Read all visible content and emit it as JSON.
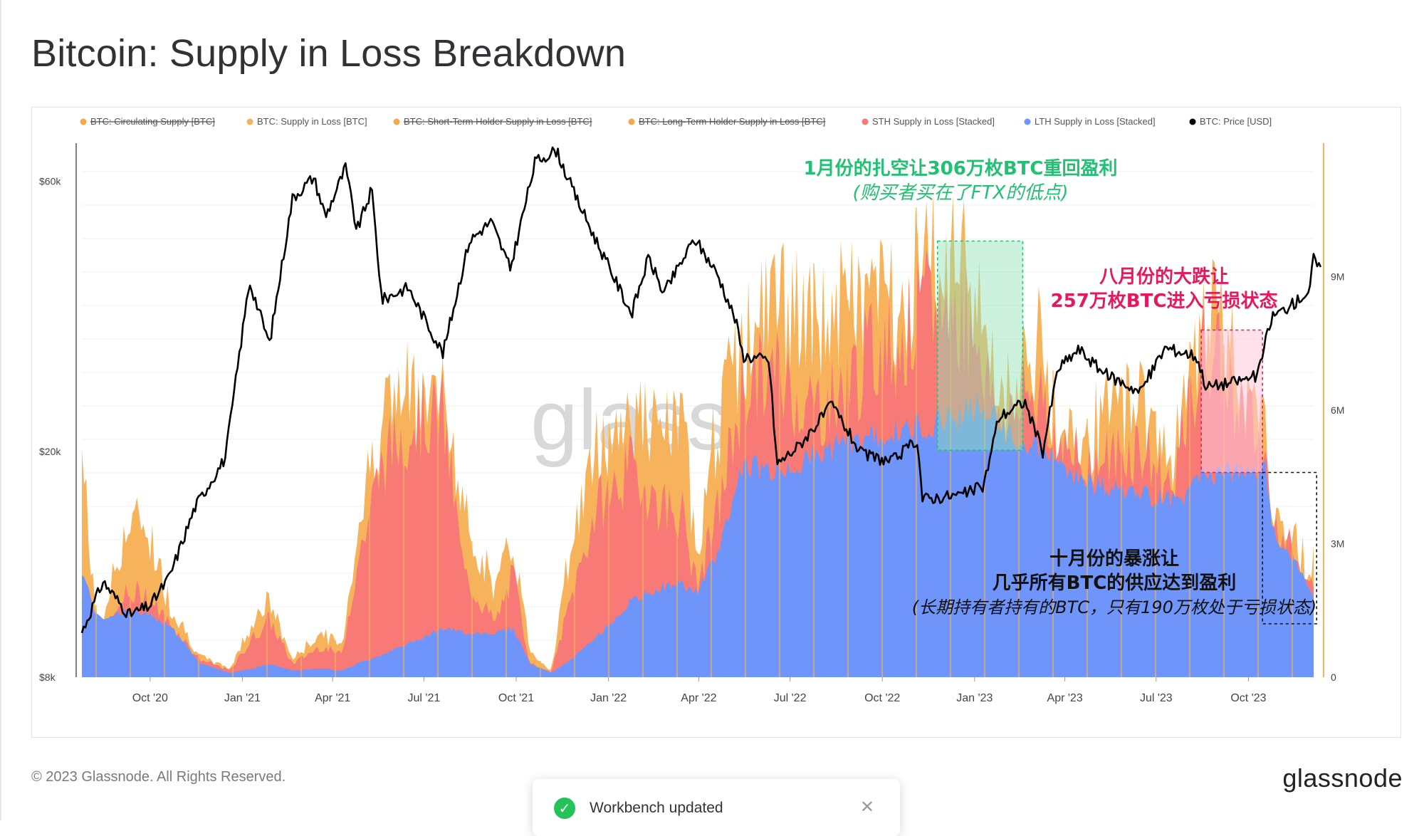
{
  "header": {
    "title": "Bitcoin: Supply in Loss Breakdown"
  },
  "footer": {
    "copyright": "© 2023 Glassnode. All Rights Reserved.",
    "brand": "glassnode"
  },
  "toast": {
    "message": "Workbench updated",
    "icon": "check-circle-icon",
    "close_icon": "close-icon"
  },
  "watermark": "glass",
  "colors": {
    "supply_in_loss": "#f7b35b",
    "sth": "#f77a76",
    "lth": "#6f95fa",
    "price": "#000000",
    "green_annot": "#21c072",
    "pink_annot": "#e5195d",
    "black_annot": "#111111",
    "right_axis": "#f7b35b"
  },
  "chart_data": {
    "type": "area",
    "title": "Bitcoin: Supply in Loss Breakdown",
    "legend_position": "top",
    "grid": true,
    "legend": [
      {
        "label": "BTC: Circulating Supply [BTC]",
        "color": "#f7a64a",
        "hidden": true
      },
      {
        "label": "BTC: Supply in Loss [BTC]",
        "color": "#f7b35b",
        "hidden": false
      },
      {
        "label": "BTC: Short-Term Holder Supply in Loss [BTC]",
        "color": "#f7a64a",
        "hidden": true
      },
      {
        "label": "BTC: Long-Term Holder Supply in Loss [BTC]",
        "color": "#f7a64a",
        "hidden": true
      },
      {
        "label": "STH Supply in Loss [Stacked]",
        "color": "#f77a76",
        "hidden": false
      },
      {
        "label": "LTH Supply in Loss [Stacked]",
        "color": "#6f95fa",
        "hidden": false
      },
      {
        "label": "BTC: Price [USD]",
        "color": "#000000",
        "hidden": false
      }
    ],
    "x_ticks": [
      "Oct '20",
      "Jan '21",
      "Apr '21",
      "Jul '21",
      "Oct '21",
      "Jan '22",
      "Apr '22",
      "Jul '22",
      "Oct '22",
      "Jan '23",
      "Apr '23",
      "Jul '23",
      "Oct '23"
    ],
    "y_left": {
      "scale": "log",
      "ticks": [
        "$8k",
        "$20k",
        "$60k"
      ],
      "tick_values": [
        8000,
        20000,
        60000
      ],
      "range": [
        8000,
        70000
      ]
    },
    "y_right": {
      "ticks": [
        "0",
        "3M",
        "6M",
        "9M"
      ],
      "tick_values": [
        0,
        3000000,
        6000000,
        9000000
      ],
      "range": [
        0,
        12000000
      ]
    },
    "x_range": [
      "2020-07-25",
      "2023-12-05"
    ],
    "supply_series": [
      {
        "date": "2020-07-25",
        "lth": 2400000,
        "sth": 1200000,
        "loss": 5000000
      },
      {
        "date": "2020-08-10",
        "lth": 1300000,
        "sth": 300000,
        "loss": 900000
      },
      {
        "date": "2020-09-05",
        "lth": 1500000,
        "sth": 1800000,
        "loss": 3200000
      },
      {
        "date": "2020-09-25",
        "lth": 1400000,
        "sth": 1900000,
        "loss": 3600000
      },
      {
        "date": "2020-10-20",
        "lth": 1200000,
        "sth": 1200000,
        "loss": 1700000
      },
      {
        "date": "2020-11-20",
        "lth": 300000,
        "sth": 400000,
        "loss": 450000
      },
      {
        "date": "2020-12-20",
        "lth": 100000,
        "sth": 150000,
        "loss": 200000
      },
      {
        "date": "2021-01-12",
        "lth": 200000,
        "sth": 900000,
        "loss": 1300000
      },
      {
        "date": "2021-01-28",
        "lth": 300000,
        "sth": 1300000,
        "loss": 1700000
      },
      {
        "date": "2021-02-20",
        "lth": 150000,
        "sth": 300000,
        "loss": 400000
      },
      {
        "date": "2021-03-20",
        "lth": 200000,
        "sth": 700000,
        "loss": 1000000
      },
      {
        "date": "2021-04-10",
        "lth": 150000,
        "sth": 500000,
        "loss": 700000
      },
      {
        "date": "2021-04-25",
        "lth": 300000,
        "sth": 2500000,
        "loss": 3200000
      },
      {
        "date": "2021-05-20",
        "lth": 500000,
        "sth": 4800000,
        "loss": 6000000
      },
      {
        "date": "2021-06-20",
        "lth": 800000,
        "sth": 5800000,
        "loss": 6400000
      },
      {
        "date": "2021-07-20",
        "lth": 1100000,
        "sth": 5900000,
        "loss": 6200000
      },
      {
        "date": "2021-08-10",
        "lth": 1000000,
        "sth": 2300000,
        "loss": 3600000
      },
      {
        "date": "2021-09-10",
        "lth": 1000000,
        "sth": 1200000,
        "loss": 2000000
      },
      {
        "date": "2021-09-28",
        "lth": 1100000,
        "sth": 2300000,
        "loss": 3000000
      },
      {
        "date": "2021-10-15",
        "lth": 300000,
        "sth": 300000,
        "loss": 600000
      },
      {
        "date": "2021-11-05",
        "lth": 100000,
        "sth": 100000,
        "loss": 150000
      },
      {
        "date": "2021-11-25",
        "lth": 400000,
        "sth": 1800000,
        "loss": 3100000
      },
      {
        "date": "2021-12-20",
        "lth": 900000,
        "sth": 3800000,
        "loss": 5100000
      },
      {
        "date": "2022-01-24",
        "lth": 1700000,
        "sth": 4700000,
        "loss": 6000000
      },
      {
        "date": "2022-02-20",
        "lth": 2000000,
        "sth": 3900000,
        "loss": 5400000
      },
      {
        "date": "2022-03-15",
        "lth": 2100000,
        "sth": 3700000,
        "loss": 5700000
      },
      {
        "date": "2022-03-30",
        "lth": 1900000,
        "sth": 2000000,
        "loss": 3000000
      },
      {
        "date": "2022-04-20",
        "lth": 2800000,
        "sth": 3700000,
        "loss": 5800000
      },
      {
        "date": "2022-05-15",
        "lth": 4800000,
        "sth": 6500000,
        "loss": 7400000
      },
      {
        "date": "2022-06-18",
        "lth": 4600000,
        "sth": 6800000,
        "loss": 8600000
      },
      {
        "date": "2022-07-20",
        "lth": 4900000,
        "sth": 6100000,
        "loss": 7800000
      },
      {
        "date": "2022-08-15",
        "lth": 5200000,
        "sth": 6200000,
        "loss": 8200000
      },
      {
        "date": "2022-09-20",
        "lth": 5400000,
        "sth": 7300000,
        "loss": 8600000
      },
      {
        "date": "2022-10-20",
        "lth": 5500000,
        "sth": 7500000,
        "loss": 8500000
      },
      {
        "date": "2022-11-15",
        "lth": 5700000,
        "sth": 8300000,
        "loss": 9400000
      },
      {
        "date": "2022-12-15",
        "lth": 5900000,
        "sth": 8200000,
        "loss": 9100000
      },
      {
        "date": "2023-01-05",
        "lth": 6100000,
        "sth": 7800000,
        "loss": 8700000
      },
      {
        "date": "2023-01-20",
        "lth": 5800000,
        "sth": 5900000,
        "loss": 6400000
      },
      {
        "date": "2023-02-05",
        "lth": 5400000,
        "sth": 5800000,
        "loss": 6300000
      },
      {
        "date": "2023-03-10",
        "lth": 5100000,
        "sth": 6600000,
        "loss": 7500000
      },
      {
        "date": "2023-03-25",
        "lth": 4800000,
        "sth": 4900000,
        "loss": 5200000
      },
      {
        "date": "2023-05-01",
        "lth": 4300000,
        "sth": 4700000,
        "loss": 5600000
      },
      {
        "date": "2023-06-15",
        "lth": 4100000,
        "sth": 5200000,
        "loss": 6400000
      },
      {
        "date": "2023-07-15",
        "lth": 4000000,
        "sth": 4200000,
        "loss": 4800000
      },
      {
        "date": "2023-08-01",
        "lth": 4100000,
        "sth": 5700000,
        "loss": 6200000
      },
      {
        "date": "2023-08-20",
        "lth": 4600000,
        "sth": 7500000,
        "loss": 8200000
      },
      {
        "date": "2023-09-20",
        "lth": 4600000,
        "sth": 6300000,
        "loss": 7200000
      },
      {
        "date": "2023-10-18",
        "lth": 4600000,
        "sth": 4900000,
        "loss": 5200000
      },
      {
        "date": "2023-10-25",
        "lth": 3300000,
        "sth": 3500000,
        "loss": 3700000
      },
      {
        "date": "2023-11-15",
        "lth": 2600000,
        "sth": 2700000,
        "loss": 3000000
      },
      {
        "date": "2023-12-05",
        "lth": 1900000,
        "sth": 2000000,
        "loss": 2500000
      }
    ],
    "price_series": [
      {
        "date": "2020-07-25",
        "price": 9600
      },
      {
        "date": "2020-08-15",
        "price": 11800
      },
      {
        "date": "2020-09-10",
        "price": 10300
      },
      {
        "date": "2020-10-01",
        "price": 10700
      },
      {
        "date": "2020-10-20",
        "price": 12000
      },
      {
        "date": "2020-11-15",
        "price": 16000
      },
      {
        "date": "2020-12-15",
        "price": 19500
      },
      {
        "date": "2021-01-08",
        "price": 40000
      },
      {
        "date": "2021-01-28",
        "price": 31000
      },
      {
        "date": "2021-02-20",
        "price": 56000
      },
      {
        "date": "2021-03-13",
        "price": 61000
      },
      {
        "date": "2021-03-25",
        "price": 52000
      },
      {
        "date": "2021-04-14",
        "price": 63500
      },
      {
        "date": "2021-04-25",
        "price": 49000
      },
      {
        "date": "2021-05-10",
        "price": 58000
      },
      {
        "date": "2021-05-20",
        "price": 37000
      },
      {
        "date": "2021-06-15",
        "price": 39000
      },
      {
        "date": "2021-07-20",
        "price": 29800
      },
      {
        "date": "2021-08-15",
        "price": 47000
      },
      {
        "date": "2021-09-06",
        "price": 51000
      },
      {
        "date": "2021-09-25",
        "price": 42000
      },
      {
        "date": "2021-10-20",
        "price": 65000
      },
      {
        "date": "2021-11-10",
        "price": 68000
      },
      {
        "date": "2021-11-28",
        "price": 57000
      },
      {
        "date": "2021-12-20",
        "price": 47000
      },
      {
        "date": "2022-01-24",
        "price": 35000
      },
      {
        "date": "2022-02-10",
        "price": 44000
      },
      {
        "date": "2022-02-25",
        "price": 38000
      },
      {
        "date": "2022-03-28",
        "price": 47500
      },
      {
        "date": "2022-04-20",
        "price": 41000
      },
      {
        "date": "2022-05-08",
        "price": 34000
      },
      {
        "date": "2022-05-15",
        "price": 29500
      },
      {
        "date": "2022-06-10",
        "price": 29000
      },
      {
        "date": "2022-06-18",
        "price": 19000
      },
      {
        "date": "2022-07-10",
        "price": 20500
      },
      {
        "date": "2022-08-12",
        "price": 24200
      },
      {
        "date": "2022-09-10",
        "price": 19800
      },
      {
        "date": "2022-10-10",
        "price": 19200
      },
      {
        "date": "2022-11-05",
        "price": 21000
      },
      {
        "date": "2022-11-10",
        "price": 16500
      },
      {
        "date": "2022-12-20",
        "price": 16800
      },
      {
        "date": "2023-01-10",
        "price": 17400
      },
      {
        "date": "2023-01-25",
        "price": 23000
      },
      {
        "date": "2023-02-20",
        "price": 24500
      },
      {
        "date": "2023-03-10",
        "price": 20000
      },
      {
        "date": "2023-03-25",
        "price": 28000
      },
      {
        "date": "2023-04-15",
        "price": 30300
      },
      {
        "date": "2023-05-10",
        "price": 27500
      },
      {
        "date": "2023-06-15",
        "price": 25500
      },
      {
        "date": "2023-07-10",
        "price": 30500
      },
      {
        "date": "2023-08-10",
        "price": 29500
      },
      {
        "date": "2023-08-20",
        "price": 26000
      },
      {
        "date": "2023-09-15",
        "price": 26500
      },
      {
        "date": "2023-10-10",
        "price": 27200
      },
      {
        "date": "2023-10-24",
        "price": 34500
      },
      {
        "date": "2023-11-15",
        "price": 36500
      },
      {
        "date": "2023-12-01",
        "price": 38500
      },
      {
        "date": "2023-12-05",
        "price": 44000
      },
      {
        "date": "2023-12-12",
        "price": 41500
      }
    ],
    "annotations": [
      {
        "id": "green",
        "lines": [
          "1月份的扎空让306万枚BTC重回盈利",
          "(购买者买在了FTX的低点)"
        ],
        "color": "#21c072",
        "box": {
          "x_start": "2022-11-25",
          "x_end": "2023-02-18",
          "y_top": 9800000,
          "y_bottom": 5100000
        }
      },
      {
        "id": "pink",
        "lines": [
          "八月份的大跌让",
          "257万枚BTC进入亏损状态"
        ],
        "color": "#e5195d",
        "box": {
          "x_start": "2023-08-15",
          "x_end": "2023-10-15",
          "y_top": 7800000,
          "y_bottom": 4600000
        }
      },
      {
        "id": "black",
        "lines": [
          "十月份的暴涨让",
          "几乎所有BTC的供应达到盈利",
          "(长期持有者持有的BTC，只有190万枚处于亏损状态)"
        ],
        "color": "#111111",
        "box": {
          "x_start": "2023-10-15",
          "x_end": "2023-12-08",
          "y_top": 4600000,
          "y_bottom": 1200000
        }
      }
    ]
  }
}
